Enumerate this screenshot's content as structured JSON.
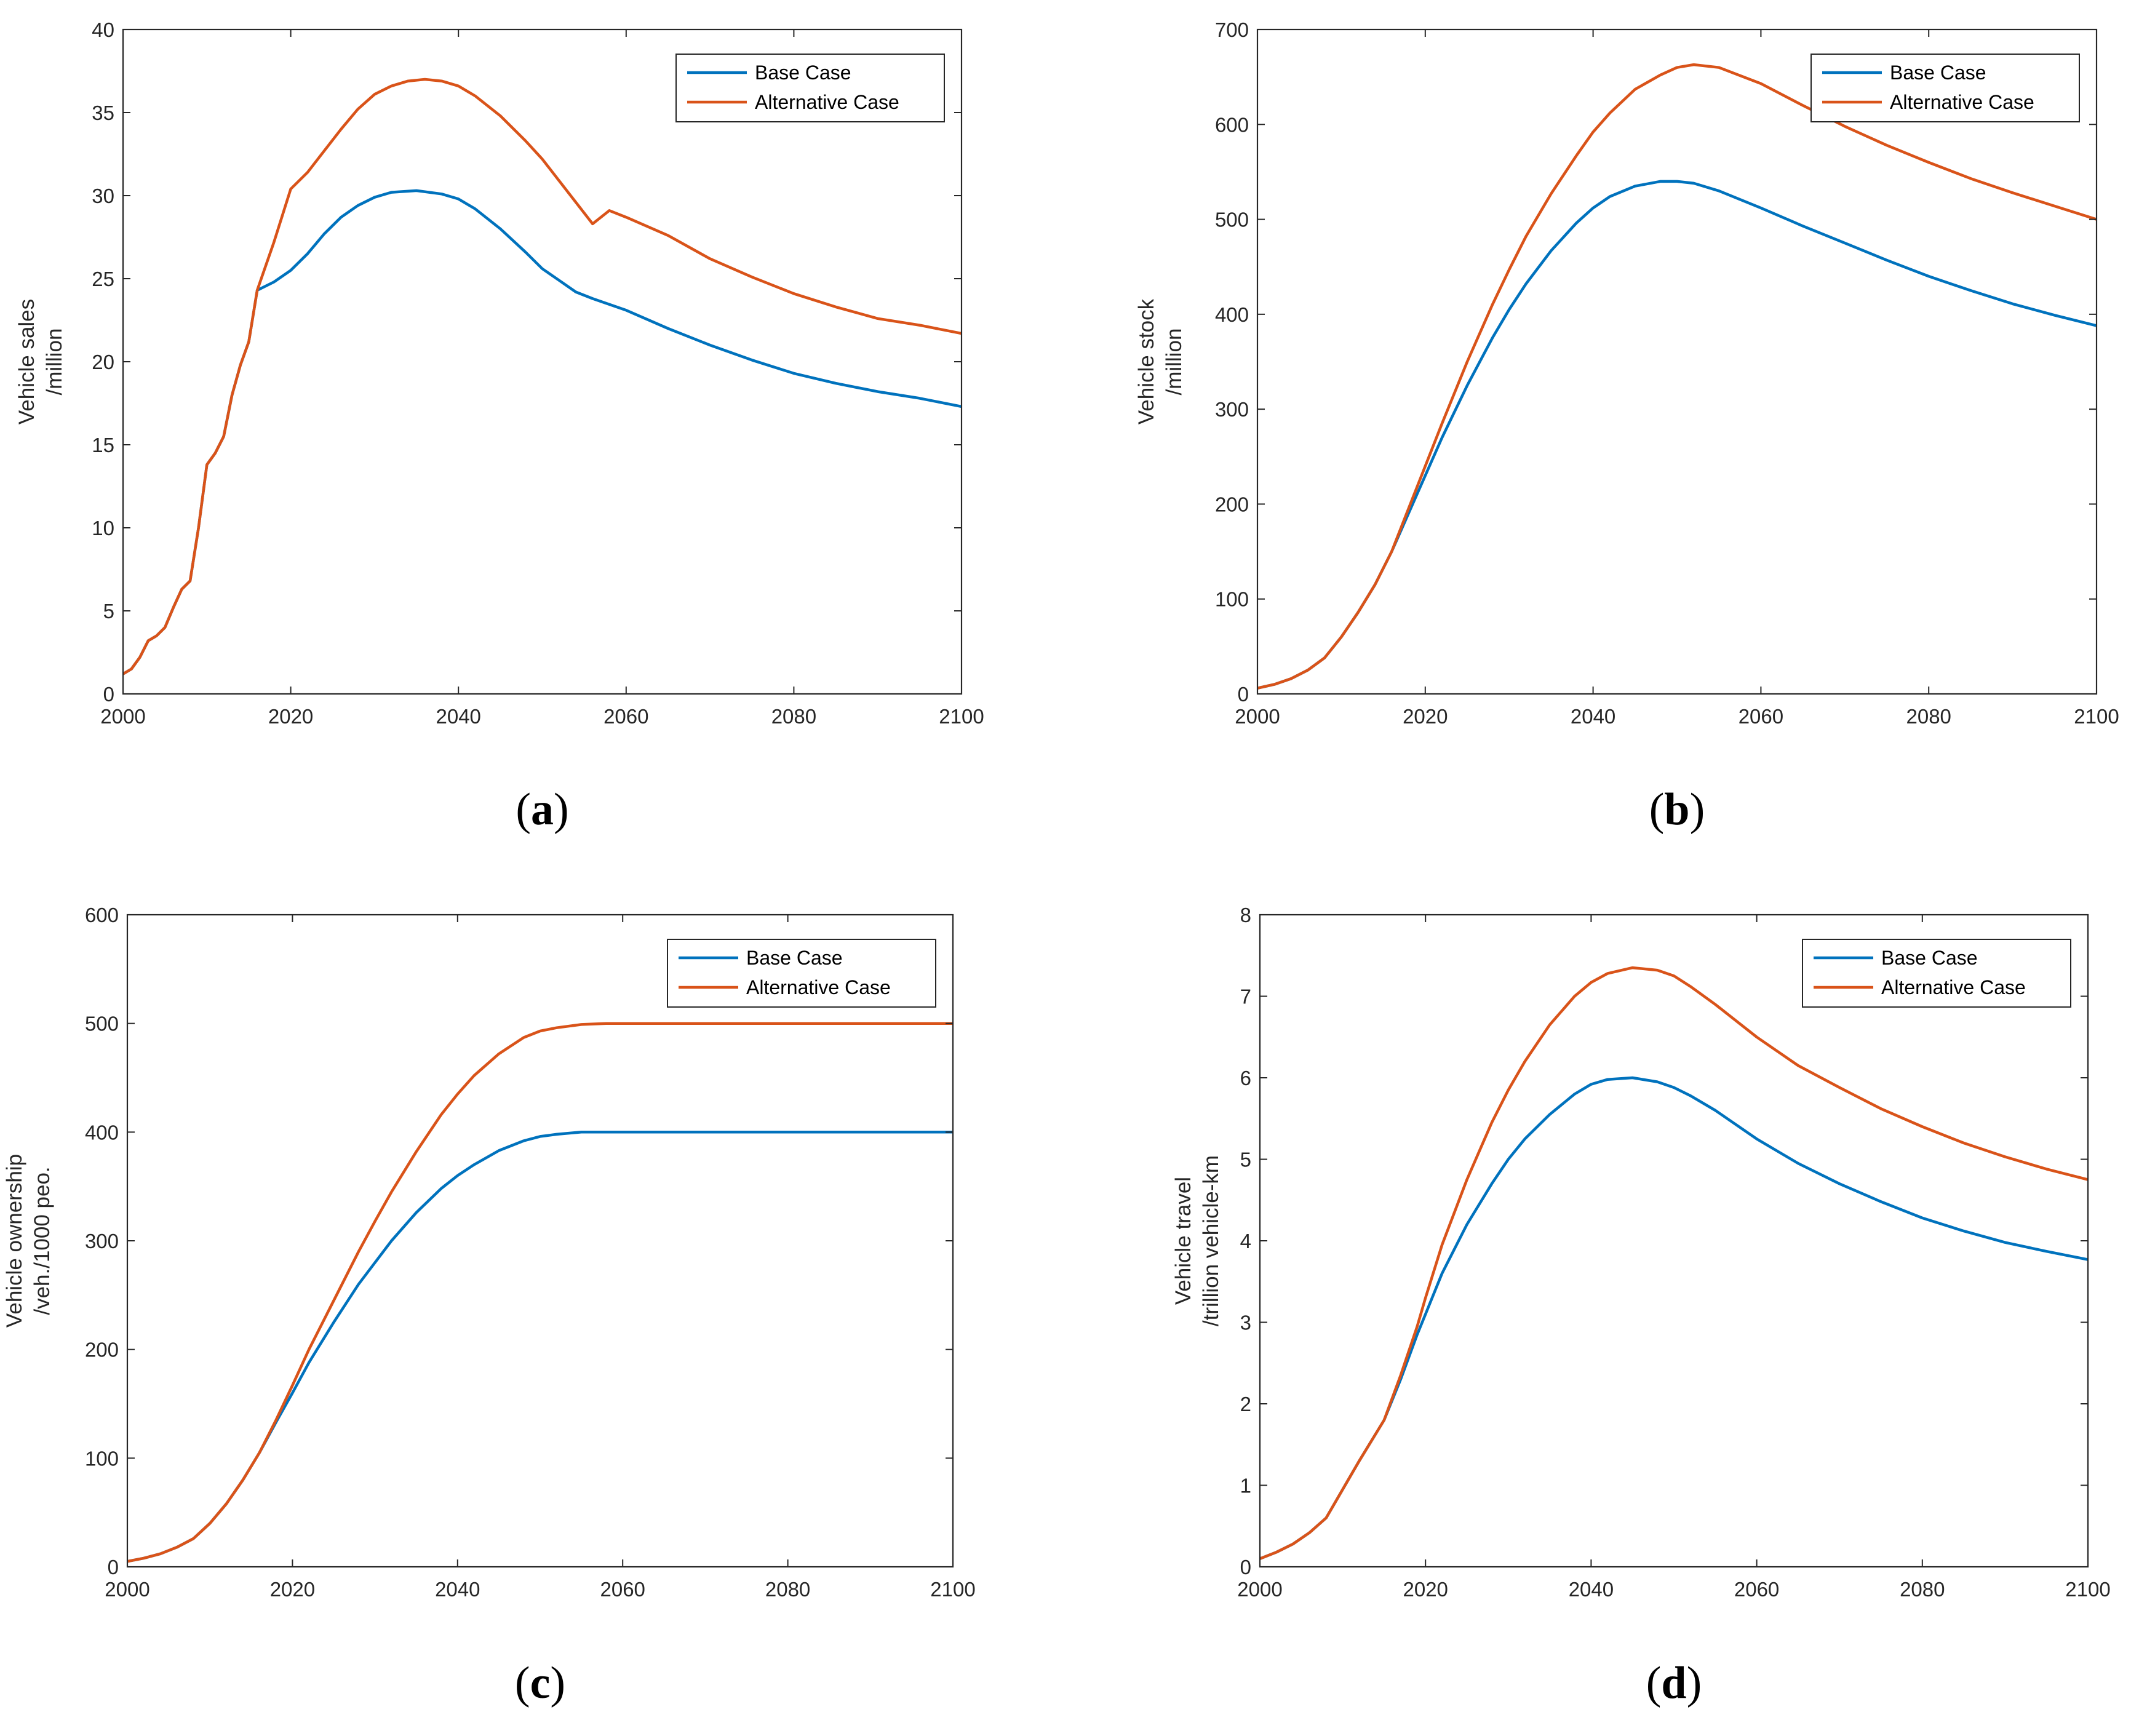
{
  "colors": {
    "base": "#0072BD",
    "alternative": "#D95319",
    "axis": "#262626"
  },
  "chart_data": [
    {
      "id": "a",
      "type": "line",
      "panel_label": "a",
      "ylabel_lines": [
        "Vehicle sales",
        "/million"
      ],
      "xlim": [
        2000,
        2100
      ],
      "ylim": [
        0,
        40
      ],
      "xticks": [
        2000,
        2020,
        2040,
        2060,
        2080,
        2100
      ],
      "yticks": [
        0,
        5,
        10,
        15,
        20,
        25,
        30,
        35,
        40
      ],
      "legend": {
        "position": "top-right",
        "entries": [
          "Base Case",
          "Alternative Case"
        ]
      },
      "series": [
        {
          "name": "Base Case",
          "color_key": "base",
          "x": [
            2000,
            2001,
            2002,
            2003,
            2004,
            2005,
            2006,
            2007,
            2008,
            2009,
            2010,
            2011,
            2012,
            2013,
            2014,
            2015,
            2016,
            2018,
            2020,
            2022,
            2024,
            2026,
            2028,
            2030,
            2032,
            2035,
            2038,
            2040,
            2042,
            2045,
            2048,
            2050,
            2052,
            2054,
            2056,
            2060,
            2065,
            2070,
            2075,
            2080,
            2085,
            2090,
            2095,
            2100
          ],
          "y": [
            1.2,
            1.5,
            2.2,
            3.2,
            3.5,
            4,
            5.2,
            6.3,
            6.8,
            10,
            13.8,
            14.5,
            15.5,
            18,
            19.8,
            21.2,
            24.3,
            24.8,
            25.5,
            26.5,
            27.7,
            28.7,
            29.4,
            29.9,
            30.2,
            30.3,
            30.1,
            29.8,
            29.2,
            28,
            26.6,
            25.6,
            24.9,
            24.2,
            23.8,
            23.1,
            22,
            21,
            20.1,
            19.3,
            18.7,
            18.2,
            17.8,
            17.3
          ]
        },
        {
          "name": "Alternative Case",
          "color_key": "alternative",
          "x": [
            2000,
            2001,
            2002,
            2003,
            2004,
            2005,
            2006,
            2007,
            2008,
            2009,
            2010,
            2011,
            2012,
            2013,
            2014,
            2015,
            2016,
            2018,
            2020,
            2022,
            2024,
            2026,
            2028,
            2030,
            2032,
            2034,
            2036,
            2038,
            2040,
            2042,
            2045,
            2048,
            2050,
            2052,
            2054,
            2056,
            2058,
            2060,
            2065,
            2070,
            2075,
            2080,
            2085,
            2090,
            2095,
            2100
          ],
          "y": [
            1.2,
            1.5,
            2.2,
            3.2,
            3.5,
            4,
            5.2,
            6.3,
            6.8,
            10,
            13.8,
            14.5,
            15.5,
            18,
            19.8,
            21.2,
            24.3,
            27.2,
            30.4,
            31.4,
            32.7,
            34,
            35.2,
            36.1,
            36.6,
            36.9,
            37,
            36.9,
            36.6,
            36,
            34.8,
            33.3,
            32.2,
            30.9,
            29.6,
            28.3,
            29.1,
            28.7,
            27.6,
            26.2,
            25.1,
            24.1,
            23.3,
            22.6,
            22.2,
            21.7
          ]
        }
      ]
    },
    {
      "id": "b",
      "type": "line",
      "panel_label": "b",
      "ylabel_lines": [
        "Vehicle stock",
        "/million"
      ],
      "xlim": [
        2000,
        2100
      ],
      "ylim": [
        0,
        700
      ],
      "xticks": [
        2000,
        2020,
        2040,
        2060,
        2080,
        2100
      ],
      "yticks": [
        0,
        100,
        200,
        300,
        400,
        500,
        600,
        700
      ],
      "legend": {
        "position": "top-right",
        "entries": [
          "Base Case",
          "Alternative Case"
        ]
      },
      "series": [
        {
          "name": "Base Case",
          "color_key": "base",
          "x": [
            2000,
            2002,
            2004,
            2006,
            2008,
            2010,
            2012,
            2014,
            2016,
            2018,
            2020,
            2022,
            2025,
            2028,
            2030,
            2032,
            2035,
            2038,
            2040,
            2042,
            2045,
            2048,
            2050,
            2052,
            2055,
            2060,
            2065,
            2070,
            2075,
            2080,
            2085,
            2090,
            2095,
            2100
          ],
          "y": [
            6,
            10,
            16,
            25,
            38,
            60,
            86,
            115,
            150,
            190,
            230,
            270,
            325,
            375,
            405,
            432,
            467,
            496,
            512,
            524,
            535,
            540,
            540,
            538,
            530,
            512,
            493,
            475,
            457,
            440,
            425,
            411,
            399,
            388
          ]
        },
        {
          "name": "Alternative Case",
          "color_key": "alternative",
          "x": [
            2000,
            2002,
            2004,
            2006,
            2008,
            2010,
            2012,
            2014,
            2016,
            2018,
            2020,
            2022,
            2025,
            2028,
            2030,
            2032,
            2035,
            2038,
            2040,
            2042,
            2045,
            2048,
            2050,
            2052,
            2055,
            2060,
            2065,
            2070,
            2075,
            2080,
            2085,
            2090,
            2095,
            2100
          ],
          "y": [
            6,
            10,
            16,
            25,
            38,
            60,
            86,
            115,
            150,
            195,
            240,
            285,
            350,
            410,
            447,
            482,
            527,
            567,
            592,
            612,
            637,
            652,
            660,
            663,
            660,
            643,
            620,
            598,
            578,
            560,
            543,
            528,
            514,
            500
          ]
        }
      ]
    },
    {
      "id": "c",
      "type": "line",
      "panel_label": "c",
      "ylabel_lines": [
        "Vehicle ownership",
        "/veh./1000 peo."
      ],
      "xlim": [
        2000,
        2100
      ],
      "ylim": [
        0,
        600
      ],
      "xticks": [
        2000,
        2020,
        2040,
        2060,
        2080,
        2100
      ],
      "yticks": [
        0,
        100,
        200,
        300,
        400,
        500,
        600
      ],
      "legend": {
        "position": "top-right",
        "entries": [
          "Base Case",
          "Alternative Case"
        ]
      },
      "series": [
        {
          "name": "Base Case",
          "color_key": "base",
          "x": [
            2000,
            2002,
            2004,
            2006,
            2008,
            2010,
            2012,
            2014,
            2016,
            2018,
            2020,
            2022,
            2025,
            2028,
            2030,
            2032,
            2035,
            2038,
            2040,
            2042,
            2045,
            2048,
            2050,
            2052,
            2055,
            2060,
            2070,
            2080,
            2090,
            2100
          ],
          "y": [
            5,
            8,
            12,
            18,
            26,
            40,
            58,
            80,
            105,
            133,
            160,
            188,
            225,
            260,
            280,
            300,
            326,
            348,
            360,
            370,
            383,
            392,
            396,
            398,
            400,
            400,
            400,
            400,
            400,
            400
          ]
        },
        {
          "name": "Alternative Case",
          "color_key": "alternative",
          "x": [
            2000,
            2002,
            2004,
            2006,
            2008,
            2010,
            2012,
            2014,
            2016,
            2018,
            2020,
            2022,
            2025,
            2028,
            2030,
            2032,
            2035,
            2038,
            2040,
            2042,
            2045,
            2048,
            2050,
            2052,
            2055,
            2058,
            2060,
            2070,
            2080,
            2090,
            2100
          ],
          "y": [
            5,
            8,
            12,
            18,
            26,
            40,
            58,
            80,
            105,
            135,
            167,
            200,
            245,
            290,
            318,
            345,
            382,
            416,
            435,
            452,
            472,
            487,
            493,
            496,
            499,
            500,
            500,
            500,
            500,
            500,
            500
          ]
        }
      ]
    },
    {
      "id": "d",
      "type": "line",
      "panel_label": "d",
      "ylabel_lines": [
        "Vehicle travel",
        "/trillion vehicle-km"
      ],
      "xlim": [
        2000,
        2100
      ],
      "ylim": [
        0,
        8
      ],
      "xticks": [
        2000,
        2020,
        2040,
        2060,
        2080,
        2100
      ],
      "yticks": [
        0,
        1,
        2,
        3,
        4,
        5,
        6,
        7,
        8
      ],
      "legend": {
        "position": "top-right",
        "entries": [
          "Base Case",
          "Alternative Case"
        ]
      },
      "series": [
        {
          "name": "Base Case",
          "color_key": "base",
          "x": [
            2000,
            2002,
            2004,
            2006,
            2008,
            2010,
            2012,
            2015,
            2017,
            2019,
            2020,
            2022,
            2025,
            2028,
            2030,
            2032,
            2035,
            2038,
            2040,
            2042,
            2045,
            2048,
            2050,
            2052,
            2055,
            2060,
            2065,
            2070,
            2075,
            2080,
            2085,
            2090,
            2095,
            2100
          ],
          "y": [
            0.1,
            0.18,
            0.28,
            0.42,
            0.6,
            0.95,
            1.3,
            1.8,
            2.3,
            2.85,
            3.1,
            3.6,
            4.2,
            4.7,
            5,
            5.25,
            5.55,
            5.8,
            5.92,
            5.98,
            6,
            5.95,
            5.88,
            5.78,
            5.6,
            5.25,
            4.95,
            4.7,
            4.48,
            4.28,
            4.12,
            3.98,
            3.87,
            3.77
          ]
        },
        {
          "name": "Alternative Case",
          "color_key": "alternative",
          "x": [
            2000,
            2002,
            2004,
            2006,
            2008,
            2010,
            2012,
            2015,
            2017,
            2019,
            2020,
            2022,
            2025,
            2028,
            2030,
            2032,
            2035,
            2038,
            2040,
            2042,
            2045,
            2048,
            2050,
            2052,
            2055,
            2060,
            2065,
            2070,
            2075,
            2080,
            2085,
            2090,
            2095,
            2100
          ],
          "y": [
            0.1,
            0.18,
            0.28,
            0.42,
            0.6,
            0.95,
            1.3,
            1.8,
            2.35,
            2.95,
            3.3,
            3.95,
            4.75,
            5.45,
            5.85,
            6.2,
            6.65,
            7,
            7.17,
            7.28,
            7.35,
            7.32,
            7.25,
            7.12,
            6.9,
            6.5,
            6.15,
            5.88,
            5.62,
            5.4,
            5.2,
            5.03,
            4.88,
            4.75
          ]
        }
      ]
    }
  ]
}
